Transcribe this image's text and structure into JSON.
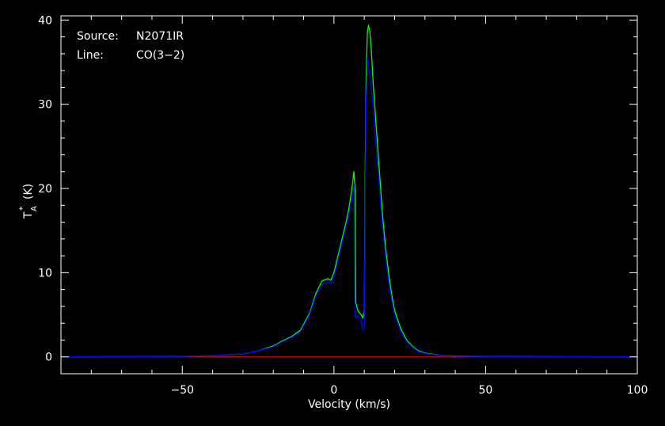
{
  "chart_data": {
    "type": "line",
    "annotations": {
      "source_label": "Source:",
      "source_value": "N2071IR",
      "line_label": "Line:",
      "line_value": "CO(3−2)"
    },
    "xlabel": "Velocity (km/s)",
    "ylabel": "T",
    "ylabel_sub": "A",
    "ylabel_sup": "*",
    "ylabel_unit": "(K)",
    "xlim": [
      -90,
      100
    ],
    "ylim": [
      -2,
      40.5
    ],
    "xticks": [
      -50,
      0,
      50,
      100
    ],
    "xtick_labels": [
      "−50",
      "0",
      "50",
      "100"
    ],
    "yticks": [
      0,
      10,
      20,
      30,
      40
    ],
    "ytick_labels": [
      "0",
      "10",
      "20",
      "30",
      "40"
    ],
    "colors": {
      "background": "#000000",
      "axes": "#ffffff",
      "series_green": "#00ff00",
      "series_blue": "#0000ff",
      "baseline": "#ff0000"
    },
    "series": [
      {
        "color": "#00ff00",
        "x": [
          -90,
          -50,
          -40,
          -30,
          -25,
          -20,
          -17,
          -14,
          -11,
          -8,
          -6,
          -4,
          -2,
          -1,
          0,
          1,
          2,
          3,
          4,
          5,
          6,
          6.6,
          7.0,
          7.2,
          7.5,
          8,
          8.5,
          9,
          9.5,
          10,
          10.3,
          10.6,
          11,
          11.4,
          11.8,
          12.3,
          13,
          14,
          15,
          16,
          17,
          18,
          19,
          20,
          22,
          24,
          26,
          28,
          30,
          35,
          40,
          50,
          70,
          100
        ],
        "y": [
          0,
          0.05,
          0.15,
          0.35,
          0.7,
          1.3,
          1.9,
          2.4,
          3.2,
          5.2,
          7.5,
          9.0,
          9.3,
          9.1,
          10.0,
          11.5,
          13.0,
          14.5,
          16.0,
          17.8,
          20.2,
          22.0,
          19.5,
          6.5,
          6.0,
          5.4,
          5.2,
          5.0,
          4.6,
          5.5,
          22.0,
          33.0,
          38.5,
          39.4,
          38.7,
          36.5,
          32.0,
          27.0,
          22.0,
          17.0,
          13.0,
          10.0,
          7.5,
          5.5,
          3.4,
          2.0,
          1.2,
          0.7,
          0.45,
          0.2,
          0.1,
          0.05,
          0.02,
          0
        ]
      },
      {
        "color": "#0000ff",
        "x": [
          -90,
          -50,
          -40,
          -30,
          -25,
          -20,
          -17,
          -14,
          -11,
          -8,
          -6,
          -4,
          -2,
          -1,
          0,
          1,
          2,
          3,
          4,
          5,
          6,
          6.6,
          6.8,
          7.0,
          7.5,
          8,
          8.5,
          9,
          9.5,
          10,
          10.3,
          10.6,
          11,
          11.4,
          11.8,
          12.3,
          13,
          14,
          15,
          16,
          17,
          18,
          19,
          20,
          22,
          24,
          26,
          28,
          30,
          35,
          40,
          50,
          70,
          100
        ],
        "y": [
          0,
          0.05,
          0.15,
          0.35,
          0.7,
          1.2,
          1.8,
          2.3,
          3.0,
          5.0,
          7.2,
          8.6,
          8.9,
          8.7,
          9.5,
          11.0,
          12.5,
          14.0,
          15.5,
          17.0,
          19.0,
          20.5,
          6.2,
          4.8,
          4.6,
          4.9,
          4.5,
          4.2,
          3.2,
          3.5,
          18.0,
          30.0,
          35.5,
          34.5,
          33.5,
          32.0,
          29.0,
          24.5,
          20.0,
          15.5,
          11.8,
          9.0,
          6.8,
          5.0,
          3.0,
          1.8,
          1.1,
          0.6,
          0.4,
          0.18,
          0.08,
          0.04,
          0.01,
          0
        ]
      }
    ]
  }
}
